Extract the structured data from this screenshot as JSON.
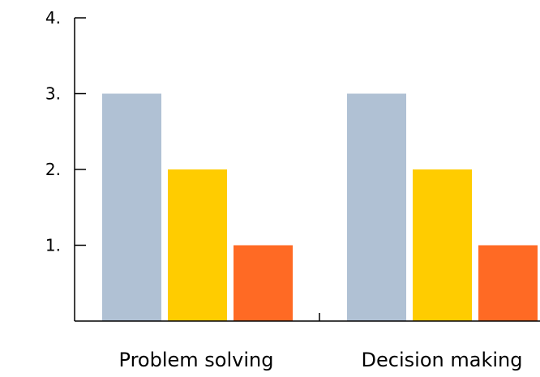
{
  "chart_data": {
    "type": "bar",
    "categories": [
      "Problem solving",
      "Decision making"
    ],
    "series": [
      {
        "values": [
          3,
          3
        ],
        "color": "#b0c1d4"
      },
      {
        "values": [
          2,
          2
        ],
        "color": "#ffcc00"
      },
      {
        "values": [
          1,
          1
        ],
        "color": "#ff6a24"
      }
    ],
    "ylim": [
      0,
      4
    ],
    "yticks": [
      1,
      2,
      3,
      4
    ],
    "ytick_labels": [
      "1.",
      "2.",
      "3.",
      "4."
    ],
    "grid": false,
    "title": "",
    "xlabel": "",
    "ylabel": ""
  }
}
